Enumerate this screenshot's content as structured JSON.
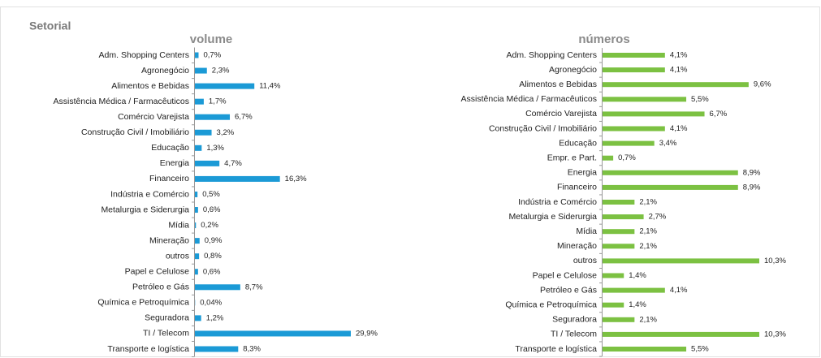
{
  "page_title": "Setorial",
  "chart_data": [
    {
      "type": "bar",
      "orientation": "horizontal",
      "title": "volume",
      "color": "#1b9ad6",
      "categories": [
        "Adm. Shopping Centers",
        "Agronegócio",
        "Alimentos e Bebidas",
        "Assistência Médica / Farmacêuticos",
        "Comércio Varejista",
        "Construção Civil / Imobiliário",
        "Educação",
        "Energia",
        "Financeiro",
        "Indústria e Comércio",
        "Metalurgia e Siderurgia",
        "Mídia",
        "Mineração",
        "outros",
        "Papel e Celulose",
        "Petróleo e Gás",
        "Química e Petroquímica",
        "Seguradora",
        "TI / Telecom",
        "Transporte e logística"
      ],
      "values": [
        0.7,
        2.3,
        11.4,
        1.7,
        6.7,
        3.2,
        1.3,
        4.7,
        16.3,
        0.5,
        0.6,
        0.2,
        0.9,
        0.8,
        0.6,
        8.7,
        0.04,
        1.2,
        29.9,
        8.3
      ],
      "value_labels": [
        "0,7%",
        "2,3%",
        "11,4%",
        "1,7%",
        "6,7%",
        "3,2%",
        "1,3%",
        "4,7%",
        "16,3%",
        "0,5%",
        "0,6%",
        "0,2%",
        "0,9%",
        "0,8%",
        "0,6%",
        "8,7%",
        "0,04%",
        "1,2%",
        "29,9%",
        "8,3%"
      ]
    },
    {
      "type": "bar",
      "orientation": "horizontal",
      "title": "números",
      "color": "#7cc142",
      "categories": [
        "Adm. Shopping Centers",
        "Agronegócio",
        "Alimentos e Bebidas",
        "Assistência Médica / Farmacêuticos",
        "Comércio Varejista",
        "Construção Civil / Imobiliário",
        "Educação",
        "Empr. e Part.",
        "Energia",
        "Financeiro",
        "Indústria e Comércio",
        "Metalurgia e Siderurgia",
        "Mídia",
        "Mineração",
        "outros",
        "Papel e Celulose",
        "Petróleo e Gás",
        "Química e Petroquímica",
        "Seguradora",
        "TI / Telecom",
        "Transporte e logística"
      ],
      "values": [
        4.1,
        4.1,
        9.6,
        5.5,
        6.7,
        4.1,
        3.4,
        0.7,
        8.9,
        8.9,
        2.1,
        2.7,
        2.1,
        2.1,
        10.3,
        1.4,
        4.1,
        1.4,
        2.1,
        10.3,
        5.5
      ],
      "value_labels": [
        "4,1%",
        "4,1%",
        "9,6%",
        "5,5%",
        "6,7%",
        "4,1%",
        "3,4%",
        "0,7%",
        "8,9%",
        "8,9%",
        "2,1%",
        "2,7%",
        "2,1%",
        "2,1%",
        "10,3%",
        "1,4%",
        "4,1%",
        "1,4%",
        "2,1%",
        "10,3%",
        "5,5%"
      ]
    }
  ]
}
